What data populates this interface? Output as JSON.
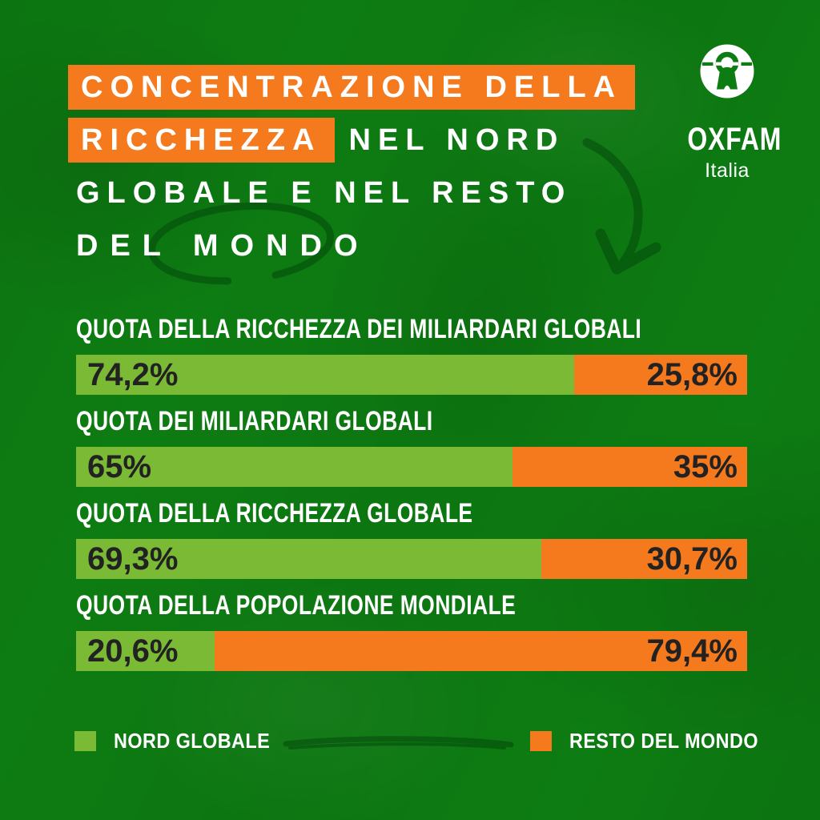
{
  "brand": {
    "wordmark": "OXFAM",
    "sub": "Italia",
    "logo_icon": "oxfam-person-icon"
  },
  "title": {
    "highlight1": "CONCENTRAZIONE DELLA",
    "highlight2": "RICCHEZZA",
    "rest2": "NEL NORD",
    "line3": "GLOBALE E NEL RESTO",
    "line4": "DEL MONDO"
  },
  "colors": {
    "background": "#0d7c12",
    "highlight_orange": "#f5791d",
    "bar_green": "#7aba35",
    "bar_orange": "#f5791d",
    "bar_value_text": "#222222",
    "heading_text": "#ffffff",
    "hand_drawn_ink": "#04490b"
  },
  "chart_data": {
    "type": "bar",
    "orientation": "horizontal_stacked",
    "unit": "percent",
    "title": "CONCENTRAZIONE DELLA RICCHEZZA NEL NORD GLOBALE E NEL RESTO DEL MONDO",
    "categories": [
      "QUOTA DELLA RICCHEZZA DEI MILIARDARI GLOBALI",
      "QUOTA DEI MILIARDARI GLOBALI",
      "QUOTA DELLA RICCHEZZA GLOBALE",
      "QUOTA DELLA POPOLAZIONE MONDIALE"
    ],
    "series": [
      {
        "name": "NORD GLOBALE",
        "color": "#7aba35",
        "values": [
          74.2,
          65,
          69.3,
          20.6
        ],
        "labels": [
          "74,2%",
          "65%",
          "69,3%",
          "20,6%"
        ]
      },
      {
        "name": "RESTO DEL MONDO",
        "color": "#f5791d",
        "values": [
          25.8,
          35,
          30.7,
          79.4
        ],
        "labels": [
          "25,8%",
          "35%",
          "30,7%",
          "79,4%"
        ]
      }
    ],
    "xlim": [
      0,
      100
    ],
    "value_format": "italian_decimal_comma",
    "legend_position": "bottom",
    "grid": false
  },
  "legend": {
    "items": [
      {
        "label": "NORD GLOBALE",
        "color": "#7aba35"
      },
      {
        "label": "RESTO DEL MONDO",
        "color": "#f5791d"
      }
    ]
  }
}
